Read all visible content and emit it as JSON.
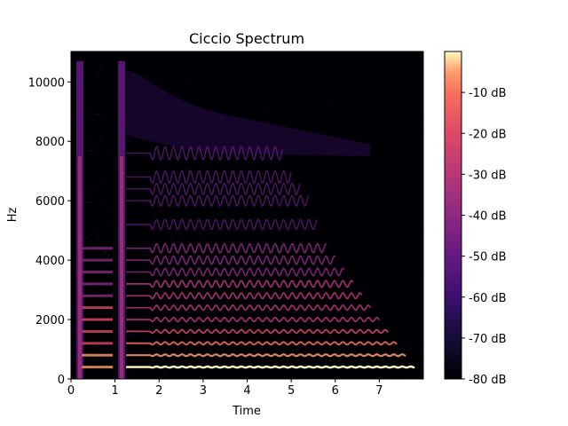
{
  "chart_data": {
    "type": "heatmap",
    "title": "Ciccio Spectrum",
    "xlabel": "Time",
    "ylabel": "Hz",
    "xlim": [
      0,
      8
    ],
    "ylim": [
      0,
      11025
    ],
    "x_ticks": [
      0,
      1,
      2,
      3,
      4,
      5,
      6,
      7
    ],
    "x_tick_labels": [
      "0",
      "1",
      "2",
      "3",
      "4",
      "5",
      "6",
      "7"
    ],
    "y_ticks": [
      0,
      2000,
      4000,
      6000,
      8000,
      10000
    ],
    "y_tick_labels": [
      "0",
      "2000",
      "4000",
      "6000",
      "8000",
      "10000"
    ],
    "colorbar": {
      "colormap": "magma",
      "range_db": [
        -80,
        0
      ],
      "ticks": [
        -10,
        -20,
        -30,
        -40,
        -50,
        -60,
        -70,
        -80
      ],
      "tick_labels": [
        "-10 dB",
        "-20 dB",
        "-30 dB",
        "-40 dB",
        "-50 dB",
        "-60 dB",
        "-70 dB",
        "-80 dB"
      ]
    },
    "signal": {
      "onset_bursts_time": [
        0.2,
        1.15
      ],
      "sustain_time_range": [
        1.25,
        7.8
      ],
      "fundamental_hz": 400,
      "harmonic_hz": [
        400,
        800,
        1200,
        1600,
        2000,
        2400,
        2800,
        3200,
        3600,
        4000,
        4400,
        5200,
        6000,
        6400,
        6800,
        7600
      ],
      "vibrato": true,
      "noise_floor_db": -80
    }
  }
}
